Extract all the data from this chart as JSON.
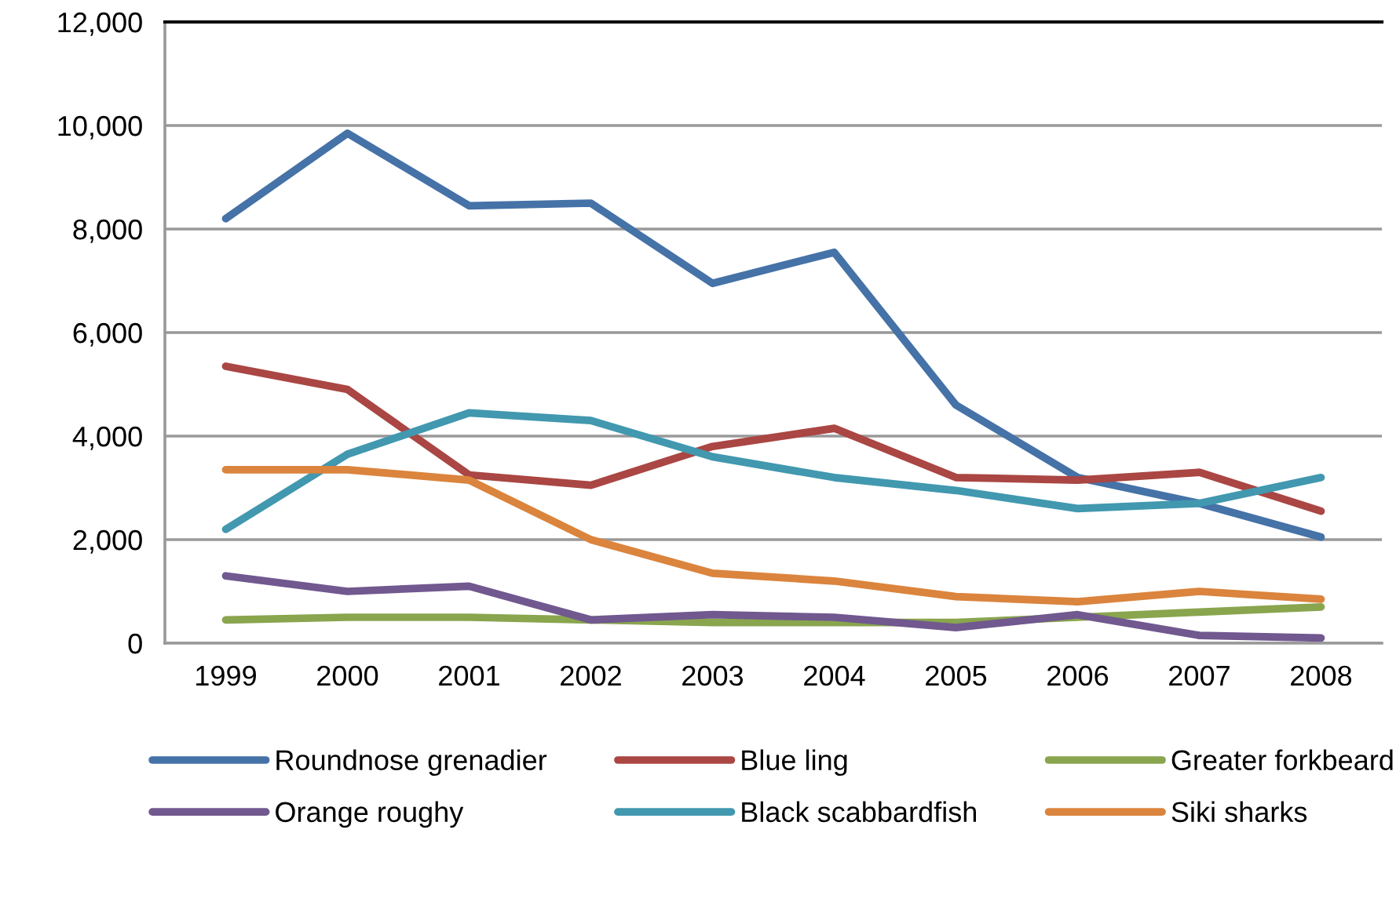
{
  "chart_data": {
    "type": "line",
    "categories": [
      "1999",
      "2000",
      "2001",
      "2002",
      "2003",
      "2004",
      "2005",
      "2006",
      "2007",
      "2008"
    ],
    "series": [
      {
        "name": "Roundnose grenadier",
        "color": "#4572a7",
        "values": [
          8200,
          9850,
          8450,
          8500,
          6950,
          7550,
          4600,
          3200,
          2700,
          2050
        ]
      },
      {
        "name": "Blue ling",
        "color": "#aa4643",
        "values": [
          5350,
          4900,
          3250,
          3050,
          3800,
          4150,
          3200,
          3150,
          3300,
          2550
        ]
      },
      {
        "name": "Greater forkbeard",
        "color": "#89a54e",
        "values": [
          450,
          500,
          500,
          450,
          400,
          400,
          400,
          500,
          600,
          700
        ]
      },
      {
        "name": "Orange roughy",
        "color": "#71588f",
        "values": [
          1300,
          1000,
          1100,
          450,
          550,
          500,
          300,
          550,
          150,
          100
        ]
      },
      {
        "name": "Black scabbardfish",
        "color": "#4198af",
        "values": [
          2200,
          3650,
          4450,
          4300,
          3600,
          3200,
          2950,
          2600,
          2700,
          3200
        ]
      },
      {
        "name": "Siki sharks",
        "color": "#db843d",
        "values": [
          3350,
          3350,
          3150,
          2000,
          1350,
          1200,
          900,
          800,
          1000,
          850
        ]
      }
    ],
    "ylim": [
      0,
      12000
    ],
    "yticks": [
      {
        "value": 0,
        "label": "0"
      },
      {
        "value": 2000,
        "label": "2,000"
      },
      {
        "value": 4000,
        "label": "4,000"
      },
      {
        "value": 6000,
        "label": "6,000"
      },
      {
        "value": 8000,
        "label": "8,000"
      },
      {
        "value": 10000,
        "label": "10,000"
      },
      {
        "value": 12000,
        "label": "12,000"
      }
    ],
    "grid": "y",
    "legend": "bottom",
    "marker": "none",
    "line_style": "solid"
  }
}
